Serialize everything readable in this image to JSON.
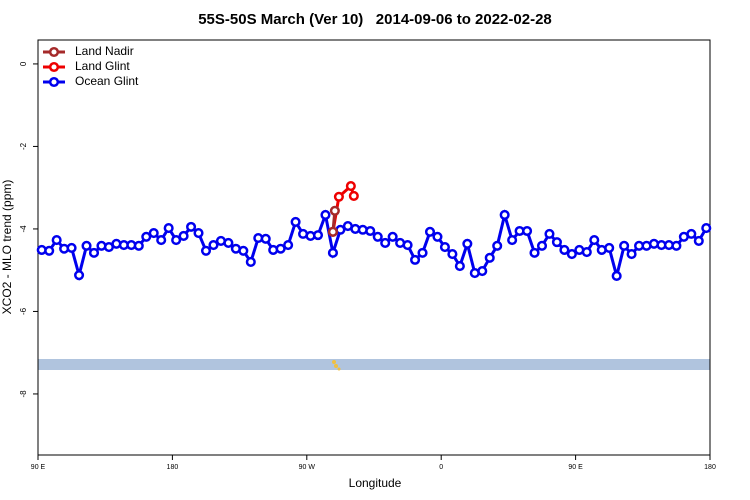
{
  "chart_data": {
    "type": "line",
    "title": "55S-50S March (Ver 10)   2014-09-06 to 2022-02-28",
    "x_label": "Longitude",
    "y_label": "XCO2 - MLO trend (ppm)",
    "xlim": [
      90,
      540
    ],
    "xticks": [
      {
        "value": 90,
        "label": "90 E"
      },
      {
        "value": 180,
        "label": "180"
      },
      {
        "value": 270,
        "label": "90 W"
      },
      {
        "value": 360,
        "label": "0"
      },
      {
        "value": 450,
        "label": "90 E"
      },
      {
        "value": 540,
        "label": "180"
      }
    ],
    "ylim": [
      -9.48,
      0.58
    ],
    "yticks": [
      0,
      -2,
      -4,
      -6,
      -8
    ],
    "legend": "top-left",
    "series": [
      {
        "name": "Land Nadir",
        "color": "#a52a2a",
        "x": [
          288.8,
          287.5
        ],
        "values": [
          -3.56,
          -4.07
        ]
      },
      {
        "name": "Land Glint",
        "color": "#ee0000",
        "x": [
          287.5,
          291.5,
          299.5,
          301.5
        ],
        "values": [
          -4.07,
          -3.22,
          -2.96,
          -3.2
        ]
      },
      {
        "name": "Ocean Glint",
        "color": "#0000ee",
        "x": [
          92.5,
          97.5,
          102.5,
          107.5,
          112.5,
          117.5,
          122.5,
          127.5,
          132.5,
          137.5,
          142.5,
          147.5,
          152.5,
          157.5,
          162.5,
          167.5,
          172.5,
          177.5,
          182.5,
          187.5,
          192.5,
          197.5,
          202.5,
          207.5,
          212.5,
          217.5,
          222.5,
          227.5,
          232.5,
          237.5,
          242.5,
          247.5,
          252.5,
          257.5,
          262.5,
          267.5,
          272.5,
          277.5,
          282.5,
          287.5,
          292.5,
          297.5,
          302.5,
          307.5,
          312.5,
          317.5,
          322.5,
          327.5,
          332.5,
          337.5,
          342.5,
          347.5,
          352.5,
          357.5,
          362.5,
          367.5,
          372.5,
          377.5,
          382.5,
          387.5,
          392.5,
          397.5,
          402.5,
          407.5,
          412.5,
          417.5,
          422.5,
          427.5,
          432.5,
          437.5,
          442.5,
          447.5,
          452.5,
          457.5,
          462.5,
          467.5,
          472.5,
          477.5,
          482.5,
          487.5,
          492.5,
          497.5,
          502.5,
          507.5,
          512.5,
          517.5,
          522.5,
          527.5,
          532.5,
          537.5
        ],
        "values": [
          -4.51,
          -4.53,
          -4.27,
          -4.48,
          -4.46,
          -5.12,
          -4.41,
          -4.58,
          -4.41,
          -4.44,
          -4.36,
          -4.39,
          -4.39,
          -4.41,
          -4.19,
          -4.1,
          -4.27,
          -3.98,
          -4.27,
          -4.17,
          -3.95,
          -4.1,
          -4.53,
          -4.39,
          -4.29,
          -4.34,
          -4.48,
          -4.53,
          -4.8,
          -4.22,
          -4.24,
          -4.51,
          -4.48,
          -4.39,
          -3.83,
          -4.12,
          -4.17,
          -4.15,
          -3.66,
          -4.58,
          -4.02,
          -3.93,
          -4.0,
          -4.02,
          -4.05,
          -4.19,
          -4.34,
          -4.19,
          -4.34,
          -4.39,
          -4.75,
          -4.58,
          -4.07,
          -4.19,
          -4.44,
          -4.61,
          -4.9,
          -4.36,
          -5.07,
          -5.02,
          -4.7,
          -4.41,
          -3.66,
          -4.27,
          -4.05,
          -4.05,
          -4.58,
          -4.41,
          -4.12,
          -4.32,
          -4.51,
          -4.61,
          -4.51,
          -4.56,
          -4.27,
          -4.51,
          -4.46,
          -5.14,
          -4.41,
          -4.61,
          -4.41,
          -4.41,
          -4.36,
          -4.39,
          -4.39,
          -4.41,
          -4.19,
          -4.12,
          -4.29,
          -3.98
        ]
      }
    ]
  }
}
